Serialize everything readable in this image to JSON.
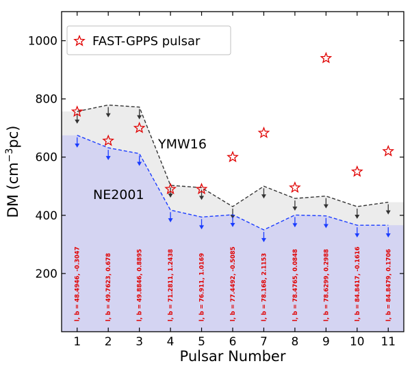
{
  "chart_data": {
    "type": "line",
    "xlabel": "Pulsar Number",
    "ylabel": "DM (cm⁻³pc)",
    "ylabel_base": "DM (cm",
    "ylabel_sup": "−3",
    "ylabel_end": "pc)",
    "xlim": [
      0.5,
      11.5
    ],
    "ylim": [
      0,
      1100
    ],
    "x_ticks": [
      1,
      2,
      3,
      4,
      5,
      6,
      7,
      8,
      9,
      10,
      11
    ],
    "y_ticks": [
      200,
      400,
      600,
      800,
      1000
    ],
    "x": [
      1,
      2,
      3,
      4,
      5,
      6,
      7,
      8,
      9,
      10,
      11
    ],
    "series": [
      {
        "name": "YMW16",
        "values": [
          757,
          779,
          772,
          503,
          495,
          430,
          500,
          458,
          466,
          430,
          445
        ],
        "color": "#333333"
      },
      {
        "name": "NE2001",
        "values": [
          675,
          632,
          612,
          418,
          394,
          402,
          350,
          401,
          398,
          366,
          366
        ],
        "color": "#1a3cff"
      }
    ],
    "pulsars": {
      "name": "FAST-GPPS pulsar",
      "values": [
        756,
        656,
        700,
        490,
        490,
        600,
        683,
        495,
        940,
        550,
        620
      ],
      "color": "#e00000"
    },
    "lb_labels": [
      "l, b = 48.4946, -0.3047",
      "l, b = 49.7623, 0.678",
      "l, b = 49.8846, 0.8895",
      "l, b = 71.2811, 1.2438",
      "l, b = 76.911, 1.0169",
      "l, b = 77.4492, -0.5085",
      "l, b = 78.168, 2.1153",
      "l, b = 78.4765, 0.0848",
      "l, b = 78.6299, 0.2988",
      "l, b = 84.8417, -0.1616",
      "l, b = 84.8479, 0.1706"
    ],
    "legend": {
      "label": "FAST-GPPS pulsar",
      "position": "top-left"
    },
    "annotations": {
      "ymw16": "YMW16",
      "ne2001": "NE2001"
    },
    "fill_colors": {
      "ymw16_region": "#ececec",
      "ne2001_region": "#d4d4f2"
    }
  }
}
